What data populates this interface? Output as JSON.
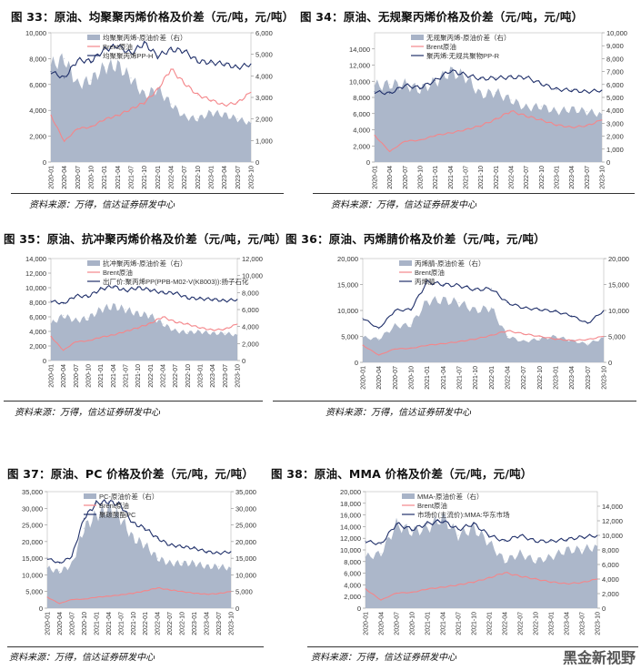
{
  "page": {
    "watermark": "黑金新视野"
  },
  "chart_data": [
    {
      "id": "c33",
      "type": "area+line",
      "title": "图 33：原油、均聚聚丙烯价格及价差（元/吨，元/吨）",
      "source": "资料来源：万得，信达证券研发中心",
      "categories": [
        "2020-01",
        "2020-04",
        "2020-07",
        "2020-10",
        "2021-01",
        "2021-04",
        "2021-07",
        "2021-10",
        "2022-01",
        "2022-04",
        "2022-07",
        "2022-10",
        "2023-01",
        "2023-04",
        "2023-07",
        "2023-10"
      ],
      "yleft": [
        0,
        10000
      ],
      "yleft_ticks": [
        0,
        2000,
        4000,
        6000,
        8000,
        10000
      ],
      "yright": [
        0,
        6000
      ],
      "yright_ticks": [
        0,
        1000,
        2000,
        3000,
        4000,
        5000,
        6000
      ],
      "legend": [
        "均聚聚丙烯-原油价差（右）",
        "Brent原油",
        "均聚聚丙烯PP-H"
      ],
      "series": [
        {
          "name": "均聚聚丙烯-原油价差（右）",
          "axis": "right",
          "kind": "area",
          "color": "#a8b3c7",
          "values": [
            4500,
            4800,
            3600,
            3800,
            4400,
            4500,
            3900,
            3100,
            3400,
            2700,
            2100,
            2000,
            2300,
            2200,
            2000,
            1800
          ]
        },
        {
          "name": "Brent原油",
          "axis": "left",
          "kind": "line",
          "color": "#f4868a",
          "values": [
            3600,
            1600,
            2600,
            2700,
            3300,
            3600,
            4100,
            4600,
            5600,
            7200,
            6100,
            5200,
            4800,
            4400,
            4600,
            5400
          ]
        },
        {
          "name": "均聚聚丙烯PP-H",
          "axis": "left",
          "kind": "line",
          "color": "#20306a",
          "values": [
            7000,
            6500,
            7900,
            7800,
            8700,
            9000,
            8400,
            9200,
            8200,
            8700,
            8600,
            7800,
            7700,
            7600,
            7300,
            7600
          ]
        }
      ]
    },
    {
      "id": "c34",
      "type": "area+line",
      "title": "图 34：原油、无规聚丙烯价格及价差（元/吨，元/吨）",
      "source": "资料来源：万得，信达证券研发中心",
      "categories": [
        "2020-01",
        "2020-04",
        "2020-07",
        "2020-10",
        "2021-01",
        "2021-04",
        "2021-07",
        "2021-10",
        "2022-01",
        "2022-04",
        "2022-07",
        "2022-10",
        "2023-01",
        "2023-04",
        "2023-07",
        "2023-10"
      ],
      "yleft": [
        0,
        16000
      ],
      "yleft_ticks": [
        0,
        2000,
        4000,
        6000,
        8000,
        10000,
        12000,
        14000
      ],
      "yright": [
        0,
        10000
      ],
      "yright_ticks": [
        0,
        1000,
        2000,
        3000,
        4000,
        5000,
        6000,
        7000,
        8000,
        9000,
        10000
      ],
      "legend": [
        "无规聚丙烯-原油价差（右）",
        "Brent原油",
        "聚丙烯:无规共聚物PP-R"
      ],
      "series": [
        {
          "name": "无规聚丙烯-原油价差（右）",
          "axis": "right",
          "kind": "area",
          "color": "#a8b3c7",
          "values": [
            5900,
            6000,
            6000,
            5600,
            6200,
            7000,
            6600,
            5200,
            5400,
            4800,
            4200,
            4300,
            3900,
            4100,
            3900,
            3700
          ]
        },
        {
          "name": "Brent原油",
          "axis": "left",
          "kind": "line",
          "color": "#f4868a",
          "values": [
            3300,
            1300,
            2600,
            2700,
            3300,
            3600,
            4000,
            4500,
            5300,
            6300,
            5700,
            5200,
            4600,
            4300,
            4500,
            5200
          ]
        },
        {
          "name": "聚丙烯:无规共聚物PP-R",
          "axis": "left",
          "kind": "line",
          "color": "#20306a",
          "values": [
            8700,
            8500,
            9500,
            9200,
            10100,
            11300,
            10800,
            10300,
            10400,
            10500,
            10500,
            9700,
            9000,
            8900,
            8700,
            8900
          ]
        }
      ]
    },
    {
      "id": "c35",
      "type": "area+line",
      "title": "图 35：原油、抗冲聚丙烯价格及价差（元/吨，元/吨）",
      "source": "资料来源：万得，信达证券研发中心",
      "categories": [
        "2020-01",
        "2020-04",
        "2020-07",
        "2020-10",
        "2021-01",
        "2021-04",
        "2021-07",
        "2021-10",
        "2022-01",
        "2022-04",
        "2022-07",
        "2022-10",
        "2023-01",
        "2023-04",
        "2023-07",
        "2023-10"
      ],
      "yleft": [
        0,
        14000
      ],
      "yleft_ticks": [
        0,
        2000,
        4000,
        6000,
        8000,
        10000,
        12000,
        14000
      ],
      "yright": [
        0,
        12000
      ],
      "yright_ticks": [
        0,
        2000,
        4000,
        6000,
        8000,
        10000,
        12000
      ],
      "legend": [
        "抗冲聚丙烯-原油价差（右）",
        "Brent原油",
        "出厂价:聚丙烯PP(PPB-M02-V(K8003)):扬子石化"
      ],
      "series": [
        {
          "name": "抗冲聚丙烯-原油价差（右）",
          "axis": "right",
          "kind": "area",
          "color": "#a8b3c7",
          "values": [
            4300,
            5300,
            4700,
            5000,
            6000,
            6400,
            6000,
            5500,
            5300,
            4300,
            3500,
            3300,
            3400,
            3200,
            3200,
            3000
          ]
        },
        {
          "name": "Brent原油",
          "axis": "left",
          "kind": "line",
          "color": "#f4868a",
          "values": [
            3300,
            1400,
            2600,
            2700,
            3200,
            3500,
            4000,
            4500,
            5100,
            6000,
            5300,
            5000,
            4500,
            4200,
            4300,
            5000
          ]
        },
        {
          "name": "出厂价:聚丙烯PP(PPB-M02-V(K8003)):扬子石化",
          "axis": "left",
          "kind": "line",
          "color": "#20306a",
          "values": [
            8200,
            7800,
            8900,
            8800,
            9800,
            10200,
            9600,
            10000,
            9700,
            9300,
            9300,
            8600,
            8500,
            8400,
            8200,
            8400
          ]
        }
      ]
    },
    {
      "id": "c36",
      "type": "area+line",
      "title": "图 36：原油、丙烯腈价格及价差（元/吨，元/吨）",
      "source": "资料来源：万得，信达证券研发中心",
      "categories": [
        "2020-01",
        "2020-04",
        "2020-07",
        "2020-10",
        "2021-01",
        "2021-04",
        "2021-07",
        "2021-10",
        "2022-01",
        "2022-04",
        "2022-07",
        "2022-10",
        "2023-01",
        "2023-04",
        "2023-07",
        "2023-10"
      ],
      "yleft": [
        0,
        20000
      ],
      "yleft_ticks": [
        0,
        5000,
        10000,
        15000,
        20000
      ],
      "yright": [
        0,
        20000
      ],
      "yright_ticks": [
        0,
        5000,
        10000,
        15000,
        20000
      ],
      "legend": [
        "丙烯腈-原油价差（右）",
        "Brent原油",
        "丙烯腈"
      ],
      "series": [
        {
          "name": "丙烯腈-原油价差（右）",
          "axis": "right",
          "kind": "area",
          "color": "#a8b3c7",
          "values": [
            4800,
            4500,
            7000,
            7200,
            11800,
            12000,
            11500,
            10000,
            10500,
            5000,
            4000,
            4500,
            5000,
            4200,
            3500,
            4800
          ]
        },
        {
          "name": "Brent原油",
          "axis": "left",
          "kind": "line",
          "color": "#f4868a",
          "values": [
            3300,
            1400,
            2600,
            2700,
            3300,
            3600,
            4000,
            4500,
            5200,
            6100,
            5500,
            5000,
            4500,
            4200,
            4400,
            5000
          ]
        },
        {
          "name": "丙烯腈",
          "axis": "left",
          "kind": "line",
          "color": "#20306a",
          "values": [
            8500,
            6500,
            10000,
            10200,
            15500,
            15000,
            14800,
            14000,
            14200,
            11500,
            10500,
            10200,
            9800,
            9000,
            7500,
            10000
          ]
        }
      ]
    },
    {
      "id": "c37",
      "type": "area+line",
      "title": "图 37：原油、PC 价格及价差（元/吨，元/吨）",
      "source": "资料来源：万得，信达证券研发中心",
      "categories": [
        "2020-01",
        "2020-04",
        "2020-07",
        "2020-10",
        "2021-01",
        "2021-04",
        "2021-07",
        "2021-10",
        "2022-01",
        "2022-04",
        "2022-07",
        "2022-10",
        "2023-01",
        "2023-04",
        "2023-07",
        "2023-10"
      ],
      "yleft": [
        0,
        35000
      ],
      "yleft_ticks": [
        0,
        5000,
        10000,
        15000,
        20000,
        25000,
        30000,
        35000
      ],
      "yright": [
        0,
        35000
      ],
      "yright_ticks": [
        0,
        5000,
        10000,
        15000,
        20000,
        25000,
        30000,
        35000
      ],
      "legend": [
        "PC-原油价差（右）",
        "Brent原油",
        "聚碳酸酯PC"
      ],
      "series": [
        {
          "name": "PC-原油价差（右）",
          "axis": "right",
          "kind": "area",
          "color": "#a8b3c7",
          "values": [
            12000,
            11000,
            13000,
            24000,
            28000,
            30000,
            27000,
            21000,
            19000,
            15000,
            13500,
            13500,
            13500,
            12500,
            12500,
            12000
          ]
        },
        {
          "name": "Brent原油",
          "axis": "left",
          "kind": "line",
          "color": "#f4868a",
          "values": [
            3300,
            1400,
            2600,
            2700,
            3300,
            3600,
            4000,
            4500,
            5200,
            6100,
            5500,
            5000,
            4500,
            4200,
            4400,
            5000
          ]
        },
        {
          "name": "聚碳酸酯PC",
          "axis": "left",
          "kind": "line",
          "color": "#20306a",
          "values": [
            15000,
            13500,
            15500,
            27000,
            31500,
            32000,
            31000,
            25500,
            24000,
            21000,
            19000,
            18500,
            18000,
            17000,
            16500,
            17000
          ]
        }
      ]
    },
    {
      "id": "c38",
      "type": "area+line",
      "title": "图 38：原油、MMA 价格及价差（元/吨，元/吨）",
      "source": "资料来源：万得，信达证券研发中心",
      "categories": [
        "2020-01",
        "2020-04",
        "2020-07",
        "2020-10",
        "2021-01",
        "2021-04",
        "2021-07",
        "2021-10",
        "2022-01",
        "2022-04",
        "2022-07",
        "2022-10",
        "2023-01",
        "2023-04",
        "2023-07",
        "2023-10"
      ],
      "yleft": [
        0,
        20000
      ],
      "yleft_ticks": [
        0,
        2000,
        4000,
        6000,
        8000,
        10000,
        12000,
        14000,
        16000,
        18000,
        20000
      ],
      "yright": [
        0,
        16000
      ],
      "yright_ticks": [
        0,
        2000,
        4000,
        6000,
        8000,
        10000,
        12000,
        14000
      ],
      "legend": [
        "MMA-原油价差（右）",
        "Brent原油",
        "市场价(主流价):MMA:华东市场"
      ],
      "series": [
        {
          "name": "MMA-原油价差（右）",
          "axis": "right",
          "kind": "area",
          "color": "#a8b3c7",
          "values": [
            7000,
            7500,
            11500,
            10500,
            11000,
            12500,
            10000,
            11000,
            9000,
            6500,
            7500,
            6500,
            7000,
            8000,
            8000,
            8500
          ]
        },
        {
          "name": "Brent原油",
          "axis": "left",
          "kind": "line",
          "color": "#f4868a",
          "values": [
            3300,
            1400,
            2600,
            2700,
            3300,
            3600,
            4000,
            4500,
            5200,
            6100,
            5500,
            5000,
            4500,
            4200,
            4400,
            5000
          ]
        },
        {
          "name": "市场价(主流价):MMA:华东市场",
          "axis": "left",
          "kind": "line",
          "color": "#20306a",
          "values": [
            11500,
            11000,
            14500,
            13500,
            14500,
            15000,
            13500,
            14500,
            12500,
            11500,
            12500,
            11500,
            11500,
            11800,
            12200,
            12500
          ]
        }
      ]
    }
  ]
}
